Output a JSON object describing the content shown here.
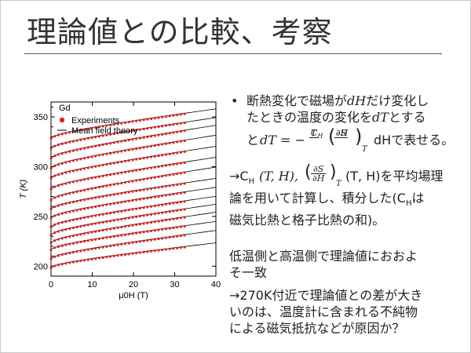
{
  "slide": {
    "title": "理論値との比較、考察"
  },
  "text": {
    "bullet": "•",
    "line1": "断熱変化で磁場が",
    "line1_math": "dH",
    "line1_tail": "だけ変化し",
    "line2": "たときの温度の変化を",
    "line2_math": "dT",
    "line2_tail": "とする",
    "line3_head": "と",
    "eq_lhs": "dT = −",
    "eq_T": "T",
    "eq_CH": "C",
    "eq_CH_sub": "H",
    "eq_dS": "∂S",
    "eq_dH": "∂H",
    "eq_subT": "T",
    "eq_tail": "dHで表せる。",
    "para2_a": "→C",
    "para2_a_sub": "H",
    "para2_b": "(T, H),",
    "para2_c": "(T, H)を平均場理",
    "para2_d": "論を用いて計算し、積分した(C",
    "para2_d_sub": "H",
    "para2_e": "は",
    "para2_f": "磁気比熱と格子比熱の和)。",
    "para3_a": "低温側と高温側で理論値におおよ",
    "para3_b": "そ一致",
    "para4_a": "→270K付近で理論値との差が大き",
    "para4_b": "いのは、温度計に含まれる不純物",
    "para4_c": "による磁気抵抗などが原因か？"
  },
  "chart_data": {
    "type": "line",
    "title": "Gd",
    "xlabel": "μ0H (T)",
    "ylabel": "T (K)",
    "xlim": [
      0,
      40
    ],
    "ylim": [
      190,
      365
    ],
    "x_ticks": [
      0,
      10,
      20,
      30,
      40
    ],
    "y_ticks": [
      200,
      250,
      300,
      350
    ],
    "legend": [
      "Experiments",
      "Mean field theory"
    ],
    "legend_position": "top-left",
    "experiment_color": "#e02020",
    "theory_color": "#000000",
    "series": [
      {
        "start": 199,
        "end": 220
      },
      {
        "start": 208,
        "end": 232
      },
      {
        "start": 217,
        "end": 241
      },
      {
        "start": 224,
        "end": 250
      },
      {
        "start": 232,
        "end": 258
      },
      {
        "start": 240,
        "end": 266
      },
      {
        "start": 249,
        "end": 275
      },
      {
        "start": 258,
        "end": 284
      },
      {
        "start": 267,
        "end": 295
      },
      {
        "start": 278,
        "end": 305
      },
      {
        "start": 289,
        "end": 316
      },
      {
        "start": 299,
        "end": 327
      },
      {
        "start": 309,
        "end": 337
      },
      {
        "start": 319,
        "end": 345
      },
      {
        "start": 329,
        "end": 354
      }
    ]
  }
}
